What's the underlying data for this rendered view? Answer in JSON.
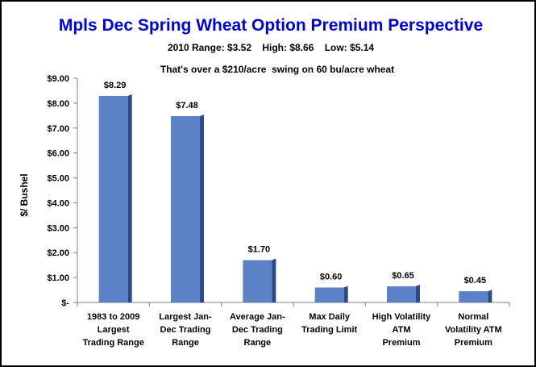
{
  "chart_data": {
    "type": "bar",
    "title": "Mpls Dec Spring Wheat Option Premium Perspective",
    "subtitle": "2010 Range: $3.52    High: $8.66    Low: $5.14",
    "note": "That's over a $210/acre  swing on 60 bu/acre wheat",
    "ylabel": "$/ Bushel",
    "xlabel": "",
    "ylim": [
      0,
      9
    ],
    "yticks": [
      0,
      1,
      2,
      3,
      4,
      5,
      6,
      7,
      8,
      9
    ],
    "ytick_labels": [
      "$-",
      "$1.00",
      "$2.00",
      "$3.00",
      "$4.00",
      "$5.00",
      "$6.00",
      "$7.00",
      "$8.00",
      "$9.00"
    ],
    "grid": false,
    "categories": [
      [
        "1983 to 2009",
        "Largest",
        "Trading Range"
      ],
      [
        "Largest Jan-",
        "Dec Trading",
        "Range"
      ],
      [
        "Average Jan-",
        "Dec Trading",
        "Range"
      ],
      [
        "Max Daily",
        "Trading Limit"
      ],
      [
        "High Volatility",
        "ATM",
        "Premium"
      ],
      [
        "Normal",
        "Volatility ATM",
        "Premium"
      ]
    ],
    "values": [
      8.29,
      7.48,
      1.7,
      0.6,
      0.65,
      0.45
    ],
    "data_labels": [
      "$8.29",
      "$7.48",
      "$1.70",
      "$0.60",
      "$0.65",
      "$0.45"
    ],
    "colors": {
      "bar_front": "#5b82c6",
      "bar_side": "#2e4a82",
      "title": "#0000cc",
      "axis": "#808080"
    }
  }
}
